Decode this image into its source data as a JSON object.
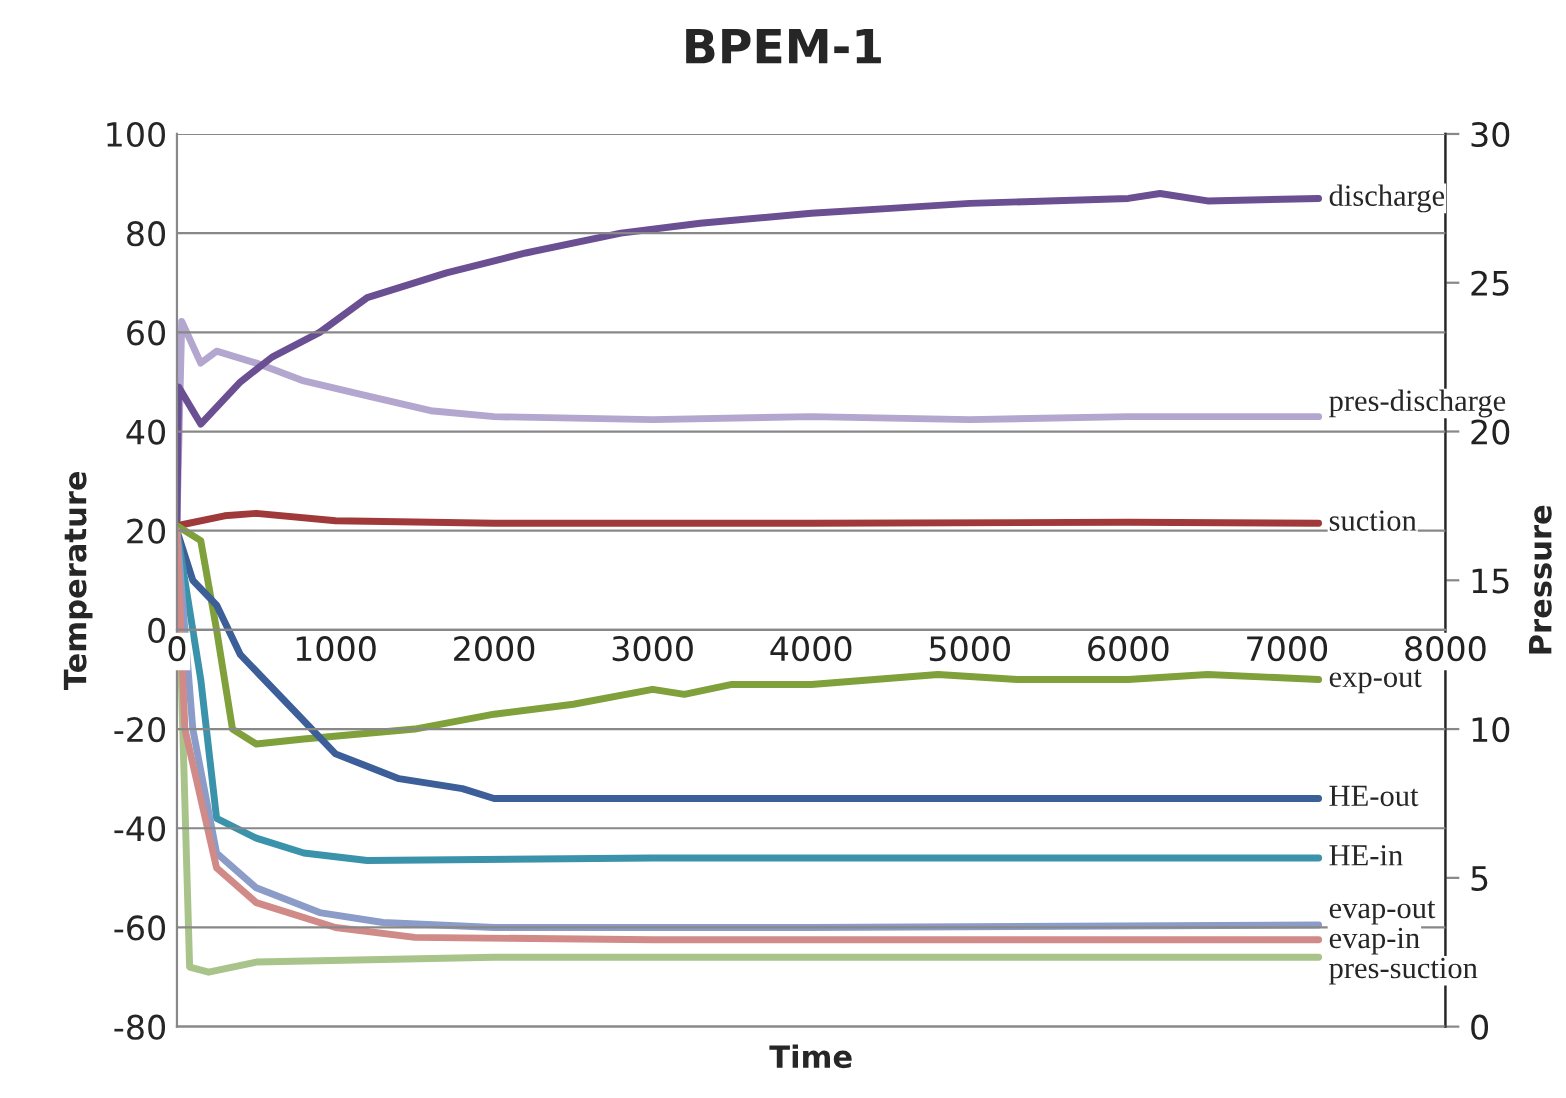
{
  "chart_data": {
    "type": "line",
    "title": "BPEM-1",
    "xlabel": "Time",
    "ylabel": "Temperature",
    "y2label": "Pressure",
    "xlim": [
      0,
      8000
    ],
    "xticks": [
      0,
      1000,
      2000,
      3000,
      4000,
      5000,
      6000,
      7000,
      8000
    ],
    "ylim": [
      -80,
      100
    ],
    "yticks": [
      -80,
      -60,
      -40,
      -20,
      0,
      20,
      40,
      60,
      80,
      100
    ],
    "y2lim": [
      0,
      30
    ],
    "y2ticks": [
      0,
      5,
      10,
      15,
      20,
      25,
      30
    ],
    "grid": "y",
    "marker": "none",
    "line_style": "solid",
    "series": [
      {
        "name": "discharge",
        "color": "#6a4f93",
        "x": [
          0,
          10,
          150,
          400,
          600,
          900,
          1200,
          1700,
          2200,
          2800,
          3300,
          4000,
          4500,
          5000,
          6000,
          6200,
          6500,
          7200
        ],
        "values": [
          22,
          49,
          41.5,
          50,
          55,
          60,
          67,
          72,
          76,
          80,
          82,
          84,
          85,
          86,
          87,
          88,
          86.5,
          87
        ]
      },
      {
        "name": "pres-discharge",
        "axis": "y2",
        "color": "#b3a6cf",
        "x": [
          0,
          30,
          150,
          250,
          500,
          800,
          1200,
          1600,
          2000,
          3000,
          4000,
          5000,
          6000,
          7200
        ],
        "values": [
          17,
          23.7,
          22.3,
          22.7,
          22.3,
          21.7,
          21.2,
          20.7,
          20.5,
          20.4,
          20.5,
          20.4,
          20.5,
          20.5
        ]
      },
      {
        "name": "suction",
        "color": "#a03a3a",
        "x": [
          0,
          300,
          500,
          1000,
          2000,
          4000,
          6000,
          7200
        ],
        "values": [
          21,
          23,
          23.5,
          22,
          21.5,
          21.5,
          21.7,
          21.5
        ]
      },
      {
        "name": "exp-out",
        "color": "#7fa03a",
        "x": [
          0,
          150,
          250,
          350,
          500,
          800,
          1500,
          2000,
          2500,
          3000,
          3200,
          3500,
          4000,
          4800,
          5300,
          6000,
          6500,
          7200
        ],
        "values": [
          21,
          18,
          0,
          -20,
          -23,
          -22,
          -20,
          -17,
          -15,
          -12,
          -13,
          -11,
          -11,
          -9,
          -10,
          -10,
          -9,
          -10
        ]
      },
      {
        "name": "HE-out",
        "color": "#3d5f99",
        "x": [
          0,
          100,
          250,
          400,
          700,
          1000,
          1400,
          1800,
          2000,
          4000,
          6000,
          7200
        ],
        "values": [
          20,
          10,
          5,
          -5,
          -15,
          -25,
          -30,
          -32,
          -34,
          -34,
          -34,
          -34
        ]
      },
      {
        "name": "HE-in",
        "color": "#3a93aa",
        "x": [
          0,
          150,
          250,
          500,
          800,
          1200,
          3000,
          5000,
          7200
        ],
        "values": [
          20,
          -10,
          -38,
          -42,
          -45,
          -46.5,
          -46,
          -46,
          -46
        ]
      },
      {
        "name": "evap-out",
        "color": "#8c9cc8",
        "x": [
          0,
          100,
          250,
          500,
          900,
          1300,
          2000,
          4000,
          7200
        ],
        "values": [
          20,
          -20,
          -45,
          -52,
          -57,
          -59,
          -60,
          -60,
          -59.5
        ]
      },
      {
        "name": "evap-in",
        "color": "#d08a88",
        "x": [
          0,
          50,
          250,
          500,
          1000,
          1500,
          3000,
          7200
        ],
        "values": [
          20,
          -20,
          -48,
          -55,
          -60,
          -62,
          -62.5,
          -62.5
        ]
      },
      {
        "name": "pres-suction",
        "axis": "y2",
        "color": "#a9c48a",
        "x": [
          0,
          80,
          200,
          500,
          2000,
          4000,
          7200
        ],
        "values": [
          16.7,
          2.0,
          1.83,
          2.17,
          2.33,
          2.33,
          2.33
        ]
      }
    ]
  }
}
